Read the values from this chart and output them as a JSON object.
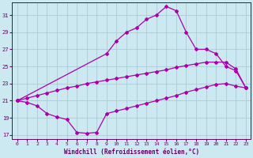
{
  "xlabel": "Windchill (Refroidissement éolien,°C)",
  "background_color": "#cce8f0",
  "grid_color": "#aaccd8",
  "line_color": "#aa00aa",
  "ylim": [
    16.5,
    32.5
  ],
  "xlim": [
    -0.5,
    23.5
  ],
  "yticks": [
    17,
    19,
    21,
    23,
    25,
    27,
    29,
    31
  ],
  "xticks": [
    0,
    1,
    2,
    3,
    4,
    5,
    6,
    7,
    8,
    9,
    10,
    11,
    12,
    13,
    14,
    15,
    16,
    17,
    18,
    19,
    20,
    21,
    22,
    23
  ],
  "s_top_x": [
    0,
    9,
    10,
    11,
    12,
    13,
    14,
    15,
    16,
    17,
    18,
    19,
    20,
    21,
    22,
    23
  ],
  "s_top_y": [
    21.0,
    26.5,
    28.0,
    29.0,
    29.5,
    30.5,
    31.0,
    32.0,
    31.5,
    29.0,
    27.0,
    27.0,
    26.5,
    25.0,
    24.5,
    22.5
  ],
  "s_mid_x": [
    0,
    1,
    2,
    3,
    4,
    5,
    6,
    7,
    8,
    9,
    10,
    11,
    12,
    13,
    14,
    15,
    16,
    17,
    18,
    19,
    20,
    21,
    22,
    23
  ],
  "s_mid_y": [
    21.0,
    21.3,
    21.6,
    21.9,
    22.2,
    22.5,
    22.7,
    23.0,
    23.2,
    23.4,
    23.6,
    23.8,
    24.0,
    24.2,
    24.4,
    24.6,
    24.9,
    25.1,
    25.3,
    25.5,
    25.5,
    25.5,
    24.7,
    22.5
  ],
  "s_bot_x": [
    0,
    1,
    2,
    3,
    4,
    5,
    6,
    7,
    8,
    9,
    10,
    11,
    12,
    13,
    14,
    15,
    16,
    17,
    18,
    19,
    20,
    21,
    22,
    23
  ],
  "s_bot_y": [
    21.0,
    20.8,
    20.4,
    19.5,
    19.1,
    18.8,
    17.3,
    17.2,
    17.3,
    19.5,
    19.8,
    20.1,
    20.4,
    20.7,
    21.0,
    21.3,
    21.6,
    22.0,
    22.3,
    22.6,
    22.9,
    23.0,
    22.7,
    22.5
  ]
}
